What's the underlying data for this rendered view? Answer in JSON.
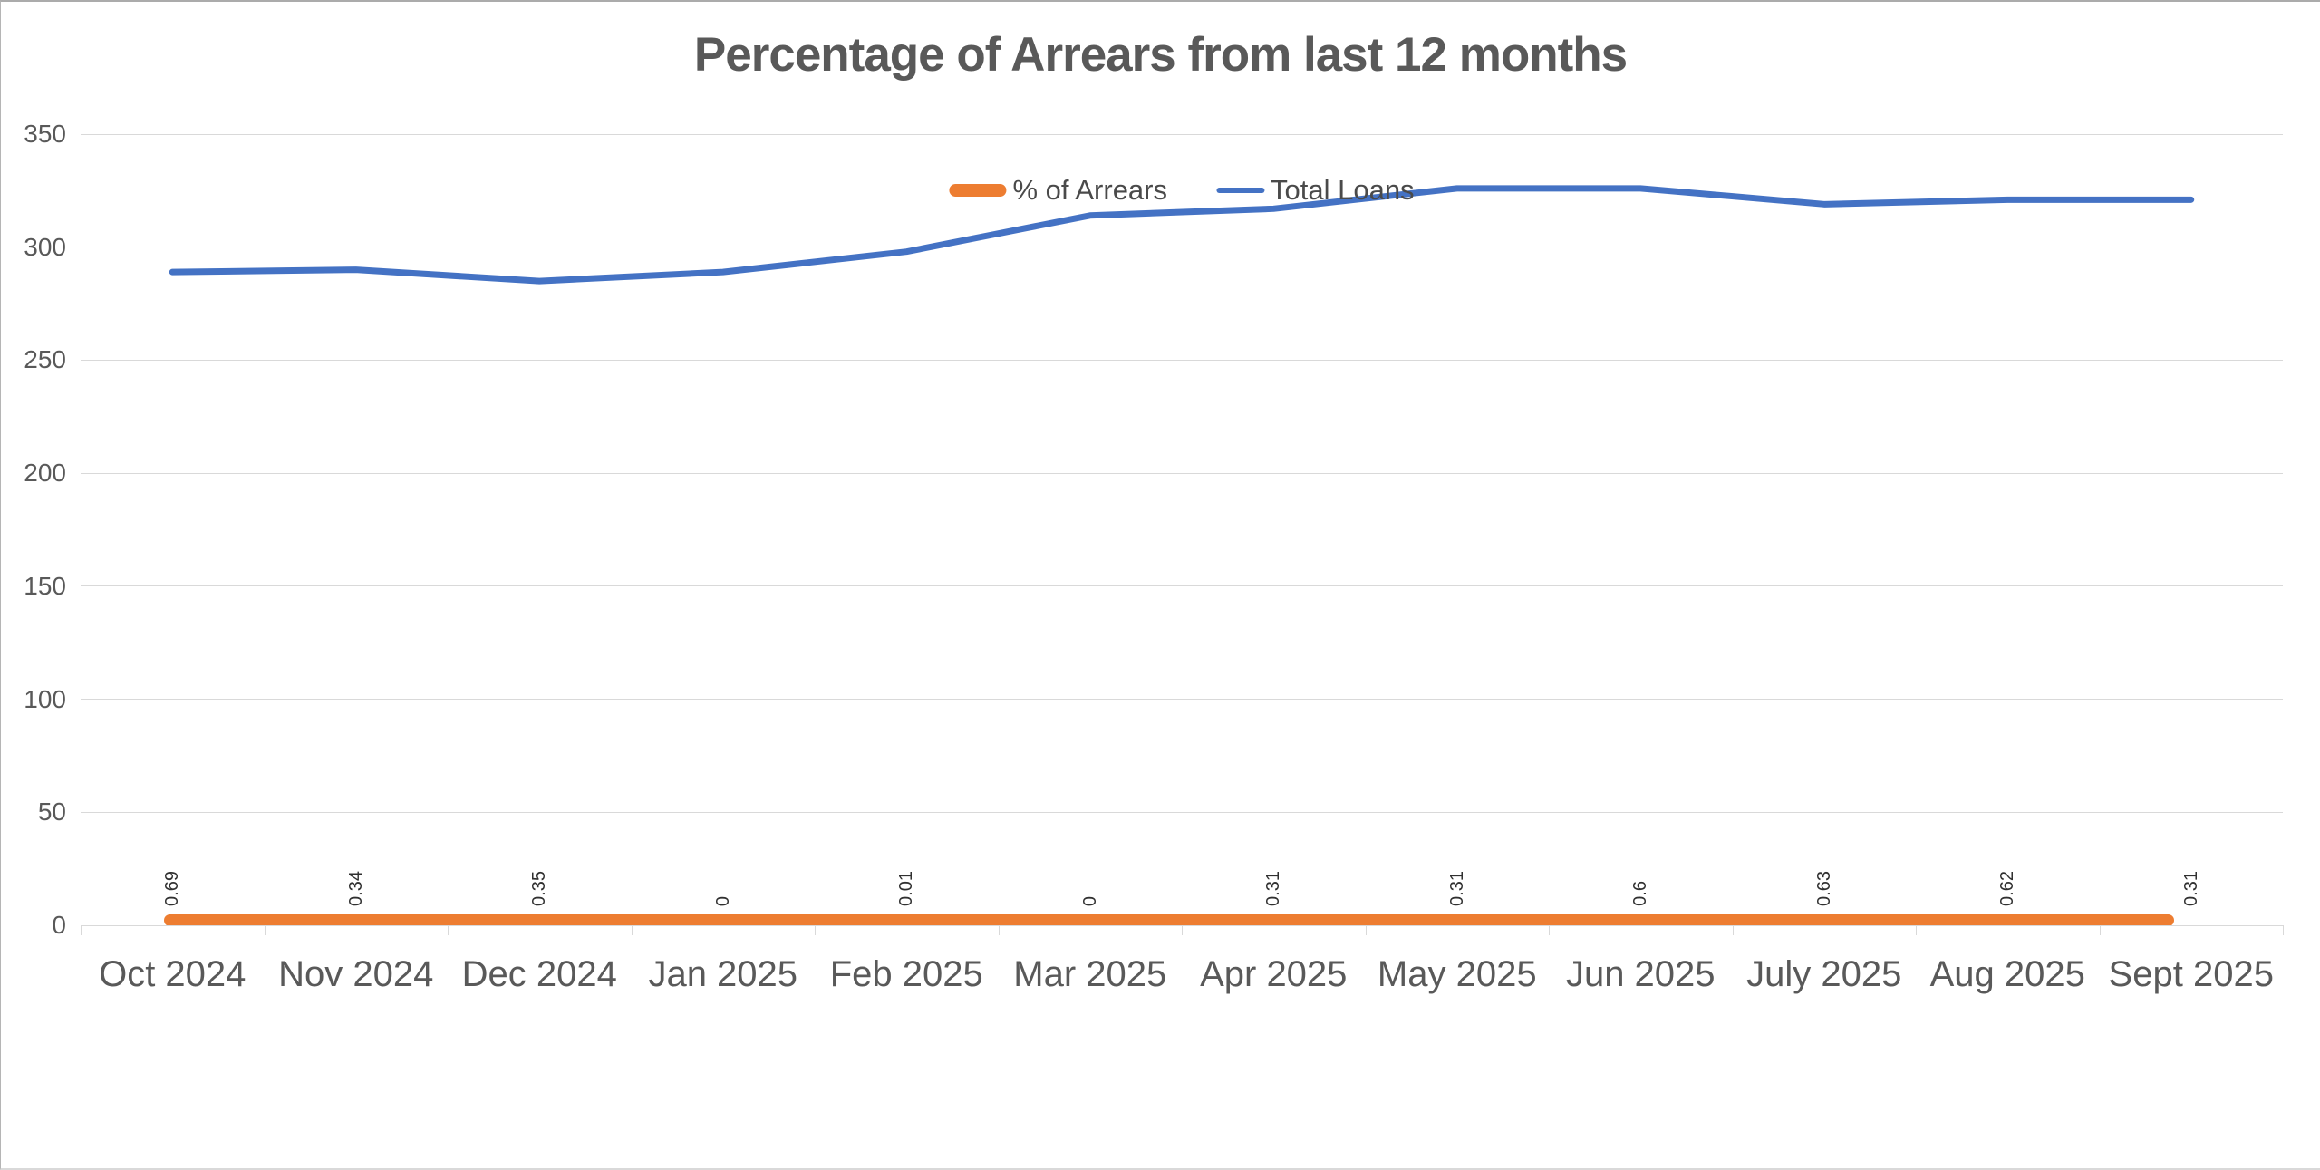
{
  "chart_data": {
    "type": "line",
    "title": "Percentage of Arrears from last 12 months",
    "categories": [
      "Oct 2024",
      "Nov 2024",
      "Dec 2024",
      "Jan 2025",
      "Feb 2025",
      "Mar 2025",
      "Apr 2025",
      "May 2025",
      "Jun 2025",
      "July 2025",
      "Aug 2025",
      "Sept 2025"
    ],
    "series": [
      {
        "name": "% of Arrears",
        "color": "#ED7D31",
        "values": [
          0.69,
          0.34,
          0.35,
          0,
          0.01,
          0,
          0.31,
          0.31,
          0.6,
          0.63,
          0.62,
          0.31
        ],
        "data_labels": [
          "0.69",
          "0.34",
          "0.35",
          "0",
          "0.01",
          "0",
          "0.31",
          "0.31",
          "0.6",
          "0.63",
          "0.62",
          "0.31"
        ]
      },
      {
        "name": "Total Loans",
        "color": "#4472C4",
        "values": [
          289,
          290,
          285,
          289,
          298,
          314,
          317,
          326,
          326,
          319,
          321,
          321
        ]
      }
    ],
    "y_axis": {
      "min": 0,
      "max": 350,
      "step": 50,
      "ticks": [
        0,
        50,
        100,
        150,
        200,
        250,
        300,
        350
      ]
    },
    "x_axis": {
      "tick_marks": true
    },
    "grid": true,
    "legend_position": "top-center",
    "colors": {
      "gridline": "#d9d9d9",
      "axis_text": "#595959",
      "title_text": "#595959",
      "data_label_text": "#303030"
    }
  }
}
